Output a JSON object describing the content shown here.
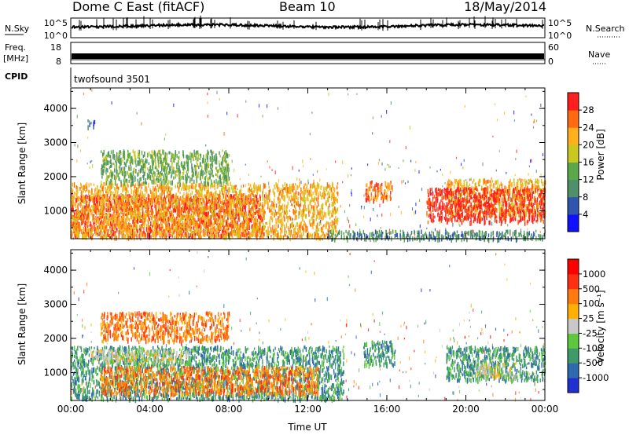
{
  "header": {
    "station": "Dome C East (fitACF)",
    "beam": "Beam 10",
    "date": "18/May/2014"
  },
  "strips": {
    "nsky_label": "N.Sky",
    "nsky_ticks": [
      "10^5",
      "10^0"
    ],
    "nsearch_label": "N.Search",
    "nsearch_ticks": [
      "10^5",
      "10^0"
    ],
    "freq_label": "Freq.",
    "freq_unit": "[MHz]",
    "freq_ticks": [
      "18",
      "8"
    ],
    "nave_label": "Nave",
    "nave_ticks": [
      "60",
      "0"
    ],
    "cpid_label": "CPID",
    "cpid_value": "twofsound 3501"
  },
  "chart_data": [
    {
      "type": "heatmap",
      "panel": "power",
      "ylabel": "Slant Range [km]",
      "xlabel": "",
      "xlim": [
        "00:00",
        "24:00"
      ],
      "ylim": [
        180,
        4600
      ],
      "x_ticks": [
        "00:00",
        "04:00",
        "08:00",
        "12:00",
        "16:00",
        "20:00",
        "00:00"
      ],
      "y_ticks": [
        1000,
        2000,
        3000,
        4000
      ],
      "colorbar": {
        "label": "Power [dB]",
        "ticks": [
          4,
          8,
          12,
          16,
          20,
          24,
          28
        ],
        "colors": [
          "#1010ff",
          "#2f55b0",
          "#4f8f6a",
          "#5aa84a",
          "#c8c81e",
          "#ffb01a",
          "#ff6a10",
          "#ff1e1e"
        ]
      },
      "regions": [
        {
          "t0": 0.0,
          "t1": 9.8,
          "r0": 300,
          "r1": 1500,
          "level": 7
        },
        {
          "t0": 0.0,
          "t1": 13.5,
          "r0": 250,
          "r1": 1850,
          "level": 5
        },
        {
          "t0": 1.5,
          "t1": 8.0,
          "r0": 1850,
          "r1": 2800,
          "level": 3
        },
        {
          "t0": 0.8,
          "t1": 1.2,
          "r0": 3500,
          "r1": 3700,
          "level": 1
        },
        {
          "t0": 14.9,
          "t1": 16.3,
          "r0": 1350,
          "r1": 1900,
          "level": 6
        },
        {
          "t0": 19.0,
          "t1": 24.0,
          "r0": 900,
          "r1": 1950,
          "level": 5
        },
        {
          "t0": 18.0,
          "t1": 24.0,
          "r0": 700,
          "r1": 1700,
          "level": 7
        },
        {
          "t0": 13.0,
          "t1": 24.0,
          "r0": 200,
          "r1": 450,
          "level": 2
        }
      ]
    },
    {
      "type": "heatmap",
      "panel": "velocity",
      "ylabel": "Slant Range [km]",
      "xlabel": "Time UT",
      "xlim": [
        "00:00",
        "24:00"
      ],
      "ylim": [
        180,
        4600
      ],
      "x_ticks": [
        "00:00",
        "04:00",
        "08:00",
        "12:00",
        "16:00",
        "20:00",
        "00:00"
      ],
      "y_ticks": [
        1000,
        2000,
        3000,
        4000
      ],
      "colorbar": {
        "label": "Velocity [m s⁻¹]",
        "ticks": [
          1000,
          500,
          100,
          25,
          -25,
          -100,
          -500,
          -1000
        ],
        "colors": [
          "#2030d0",
          "#2f6ab0",
          "#3f9a6a",
          "#5cc83c",
          "#c8c8c8",
          "#ffb000",
          "#ff7a10",
          "#ff3010",
          "#ff0000"
        ]
      },
      "regions": [
        {
          "t0": 0.0,
          "t1": 13.8,
          "r0": 250,
          "r1": 1800,
          "level": 2
        },
        {
          "t0": 1.5,
          "t1": 12.5,
          "r0": 400,
          "r1": 1200,
          "level": 6
        },
        {
          "t0": 1.0,
          "t1": 6.0,
          "r0": 1300,
          "r1": 1700,
          "level": 4
        },
        {
          "t0": 1.5,
          "t1": 8.0,
          "r0": 1950,
          "r1": 2800,
          "level": 6
        },
        {
          "t0": 14.8,
          "t1": 16.4,
          "r0": 1250,
          "r1": 1950,
          "level": 2
        },
        {
          "t0": 19.0,
          "t1": 24.0,
          "r0": 800,
          "r1": 1800,
          "level": 2
        },
        {
          "t0": 20.5,
          "t1": 22.5,
          "r0": 900,
          "r1": 1300,
          "level": 4
        }
      ]
    }
  ]
}
